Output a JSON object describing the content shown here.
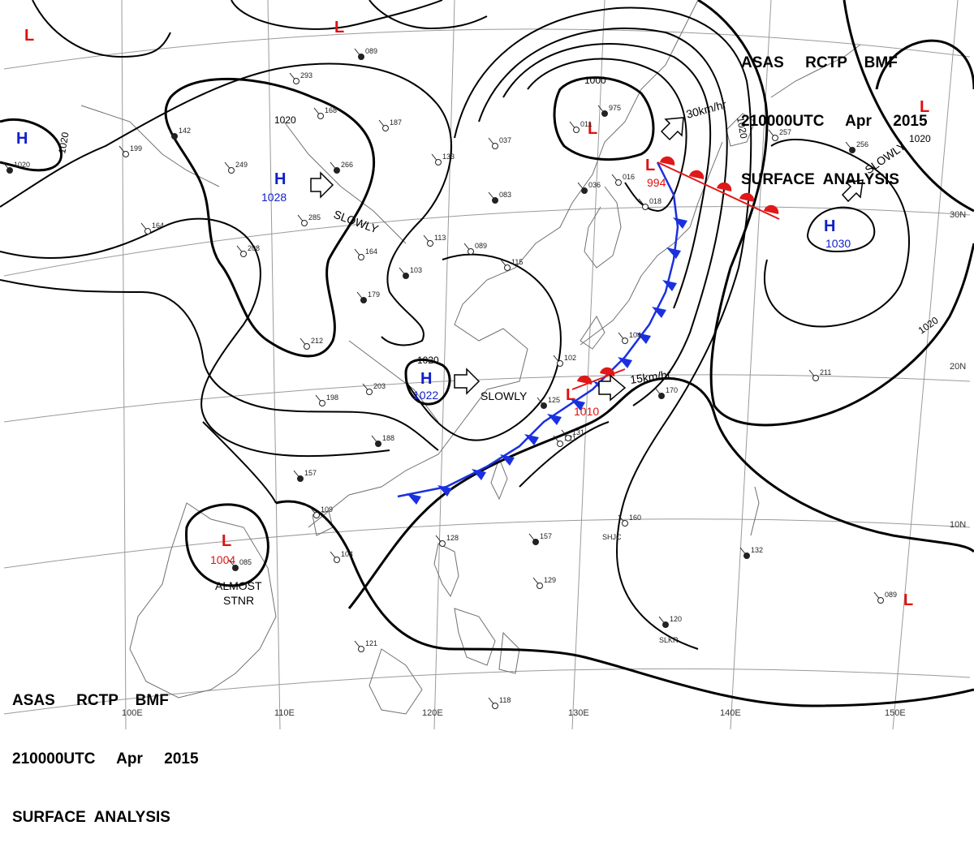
{
  "header": {
    "line1": "ASAS     RCTP    BMF",
    "line2": "210000UTC     Apr     2015",
    "line3": "SURFACE  ANALYSIS"
  },
  "colors": {
    "high": "#1020c8",
    "low": "#e01010",
    "cold_front": "#1a30e0",
    "warm_front": "#e01818",
    "isobar": "#000000",
    "grid": "#9a9a9a",
    "coast": "#707070"
  },
  "grid_labels": {
    "lon": [
      "100E",
      "110E",
      "120E",
      "130E",
      "140E",
      "150E"
    ],
    "lat": [
      "30N",
      "20N",
      "10N"
    ]
  },
  "isobar_labels": [
    "1020",
    "1020",
    "1020",
    "1000",
    "1020",
    "1020",
    "1020"
  ],
  "pressure_systems": [
    {
      "type": "H",
      "value": "1028"
    },
    {
      "type": "H",
      "value": "1022"
    },
    {
      "type": "H",
      "value": "1030"
    },
    {
      "type": "H",
      "value": ""
    },
    {
      "type": "L",
      "value": "994"
    },
    {
      "type": "L",
      "value": "1010"
    },
    {
      "type": "L",
      "value": "1004"
    },
    {
      "type": "L",
      "value": ""
    },
    {
      "type": "L",
      "value": ""
    },
    {
      "type": "L",
      "value": ""
    },
    {
      "type": "L",
      "value": ""
    },
    {
      "type": "L",
      "value": ""
    }
  ],
  "motion_labels": [
    "SLOWLY",
    "SLOWLY",
    "30km/hr",
    "15km/hr",
    "SLOWLY"
  ],
  "stnr_label": [
    "ALMOST",
    "STNR"
  ],
  "station_values": [
    "1020",
    "199",
    "249",
    "266",
    "285",
    "293",
    "089",
    "168",
    "187",
    "142",
    "164",
    "208",
    "179",
    "212",
    "198",
    "188",
    "203",
    "164",
    "157",
    "109",
    "104",
    "085",
    "113",
    "089",
    "103",
    "115",
    "133",
    "083",
    "037",
    "011",
    "975",
    "016",
    "018",
    "036",
    "121",
    "131",
    "125",
    "102",
    "104",
    "170",
    "211",
    "160",
    "157",
    "129",
    "128",
    "120",
    "121",
    "118",
    "132",
    "089",
    "257",
    "256"
  ],
  "station_ids": [
    "SHJC",
    "SLKR"
  ]
}
